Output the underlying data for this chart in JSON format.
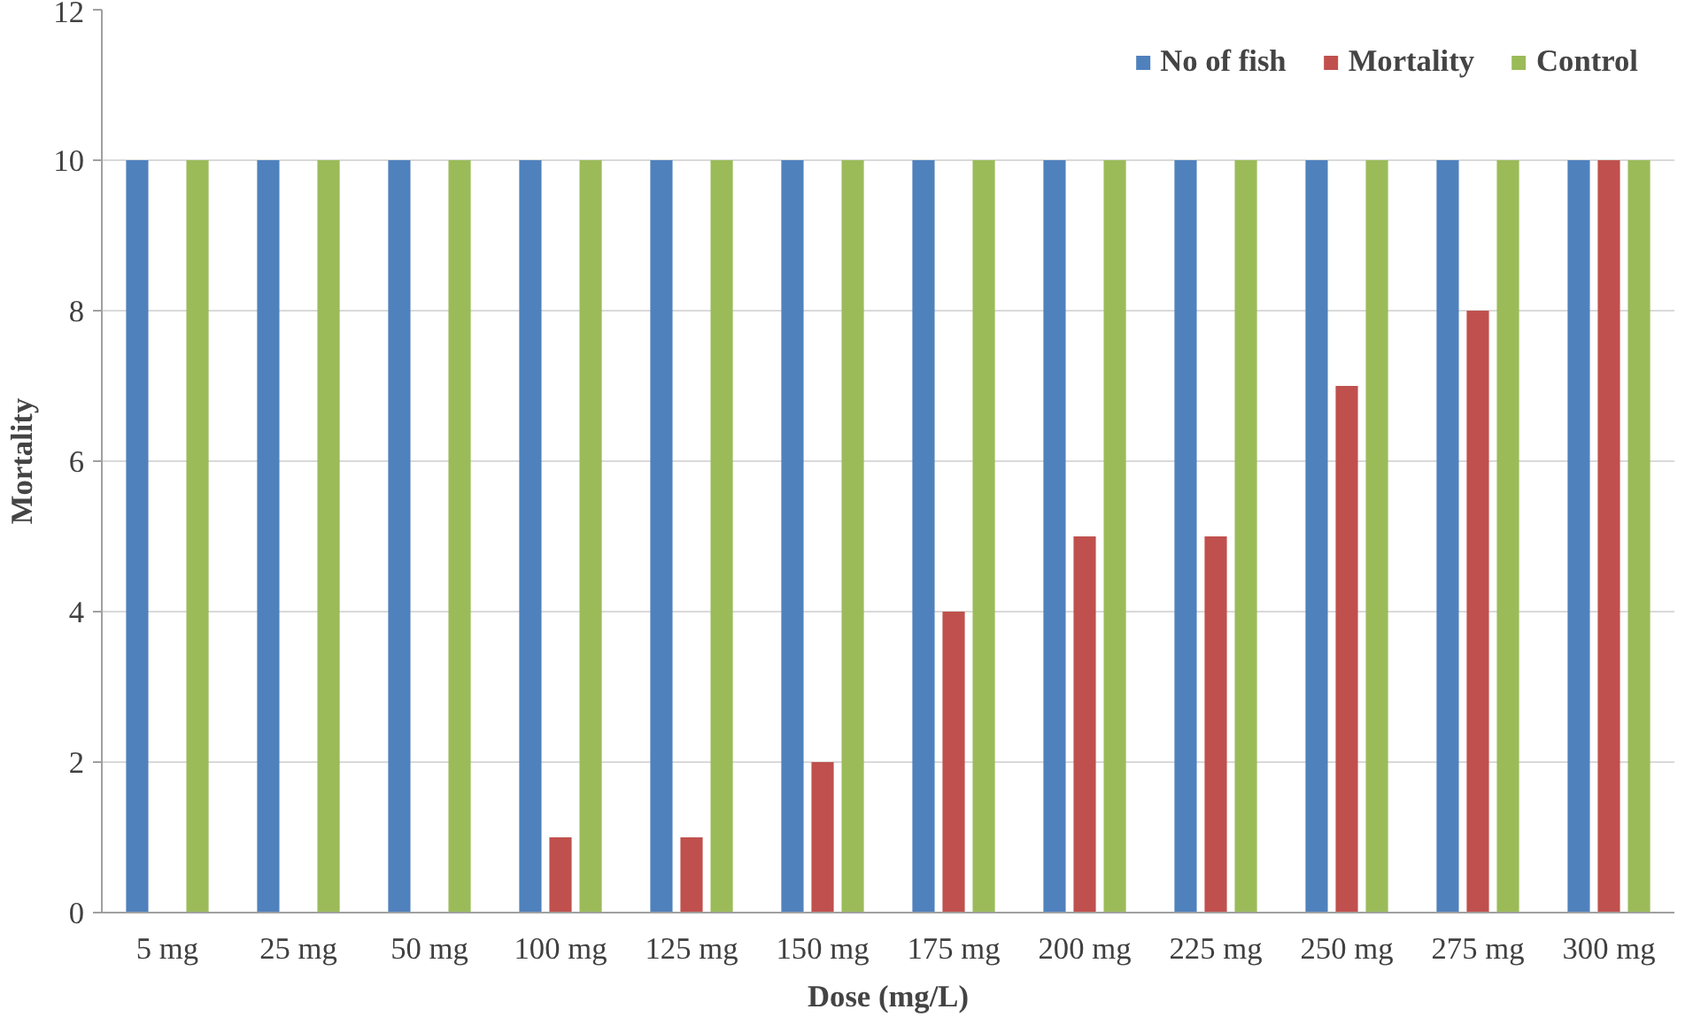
{
  "chart_data": {
    "type": "bar",
    "xlabel": "Dose (mg/L)",
    "ylabel": "Mortality",
    "categories": [
      "5 mg",
      "25 mg",
      "50 mg",
      "100 mg",
      "125 mg",
      "150 mg",
      "175 mg",
      "200 mg",
      "225 mg",
      "250 mg",
      "275 mg",
      "300 mg"
    ],
    "series": [
      {
        "name": "No of fish",
        "color": "#4f81bd",
        "values": [
          10,
          10,
          10,
          10,
          10,
          10,
          10,
          10,
          10,
          10,
          10,
          10
        ]
      },
      {
        "name": "Mortality",
        "color": "#c0504d",
        "values": [
          0,
          0,
          0,
          1,
          1,
          2,
          4,
          5,
          5,
          7,
          8,
          10
        ]
      },
      {
        "name": "Control",
        "color": "#9bbb59",
        "values": [
          10,
          10,
          10,
          10,
          10,
          10,
          10,
          10,
          10,
          10,
          10,
          10
        ]
      }
    ],
    "ylim": [
      0,
      12
    ],
    "yticks": [
      0,
      2,
      4,
      6,
      8,
      10,
      12
    ],
    "grid": "y",
    "legend": "top right"
  }
}
